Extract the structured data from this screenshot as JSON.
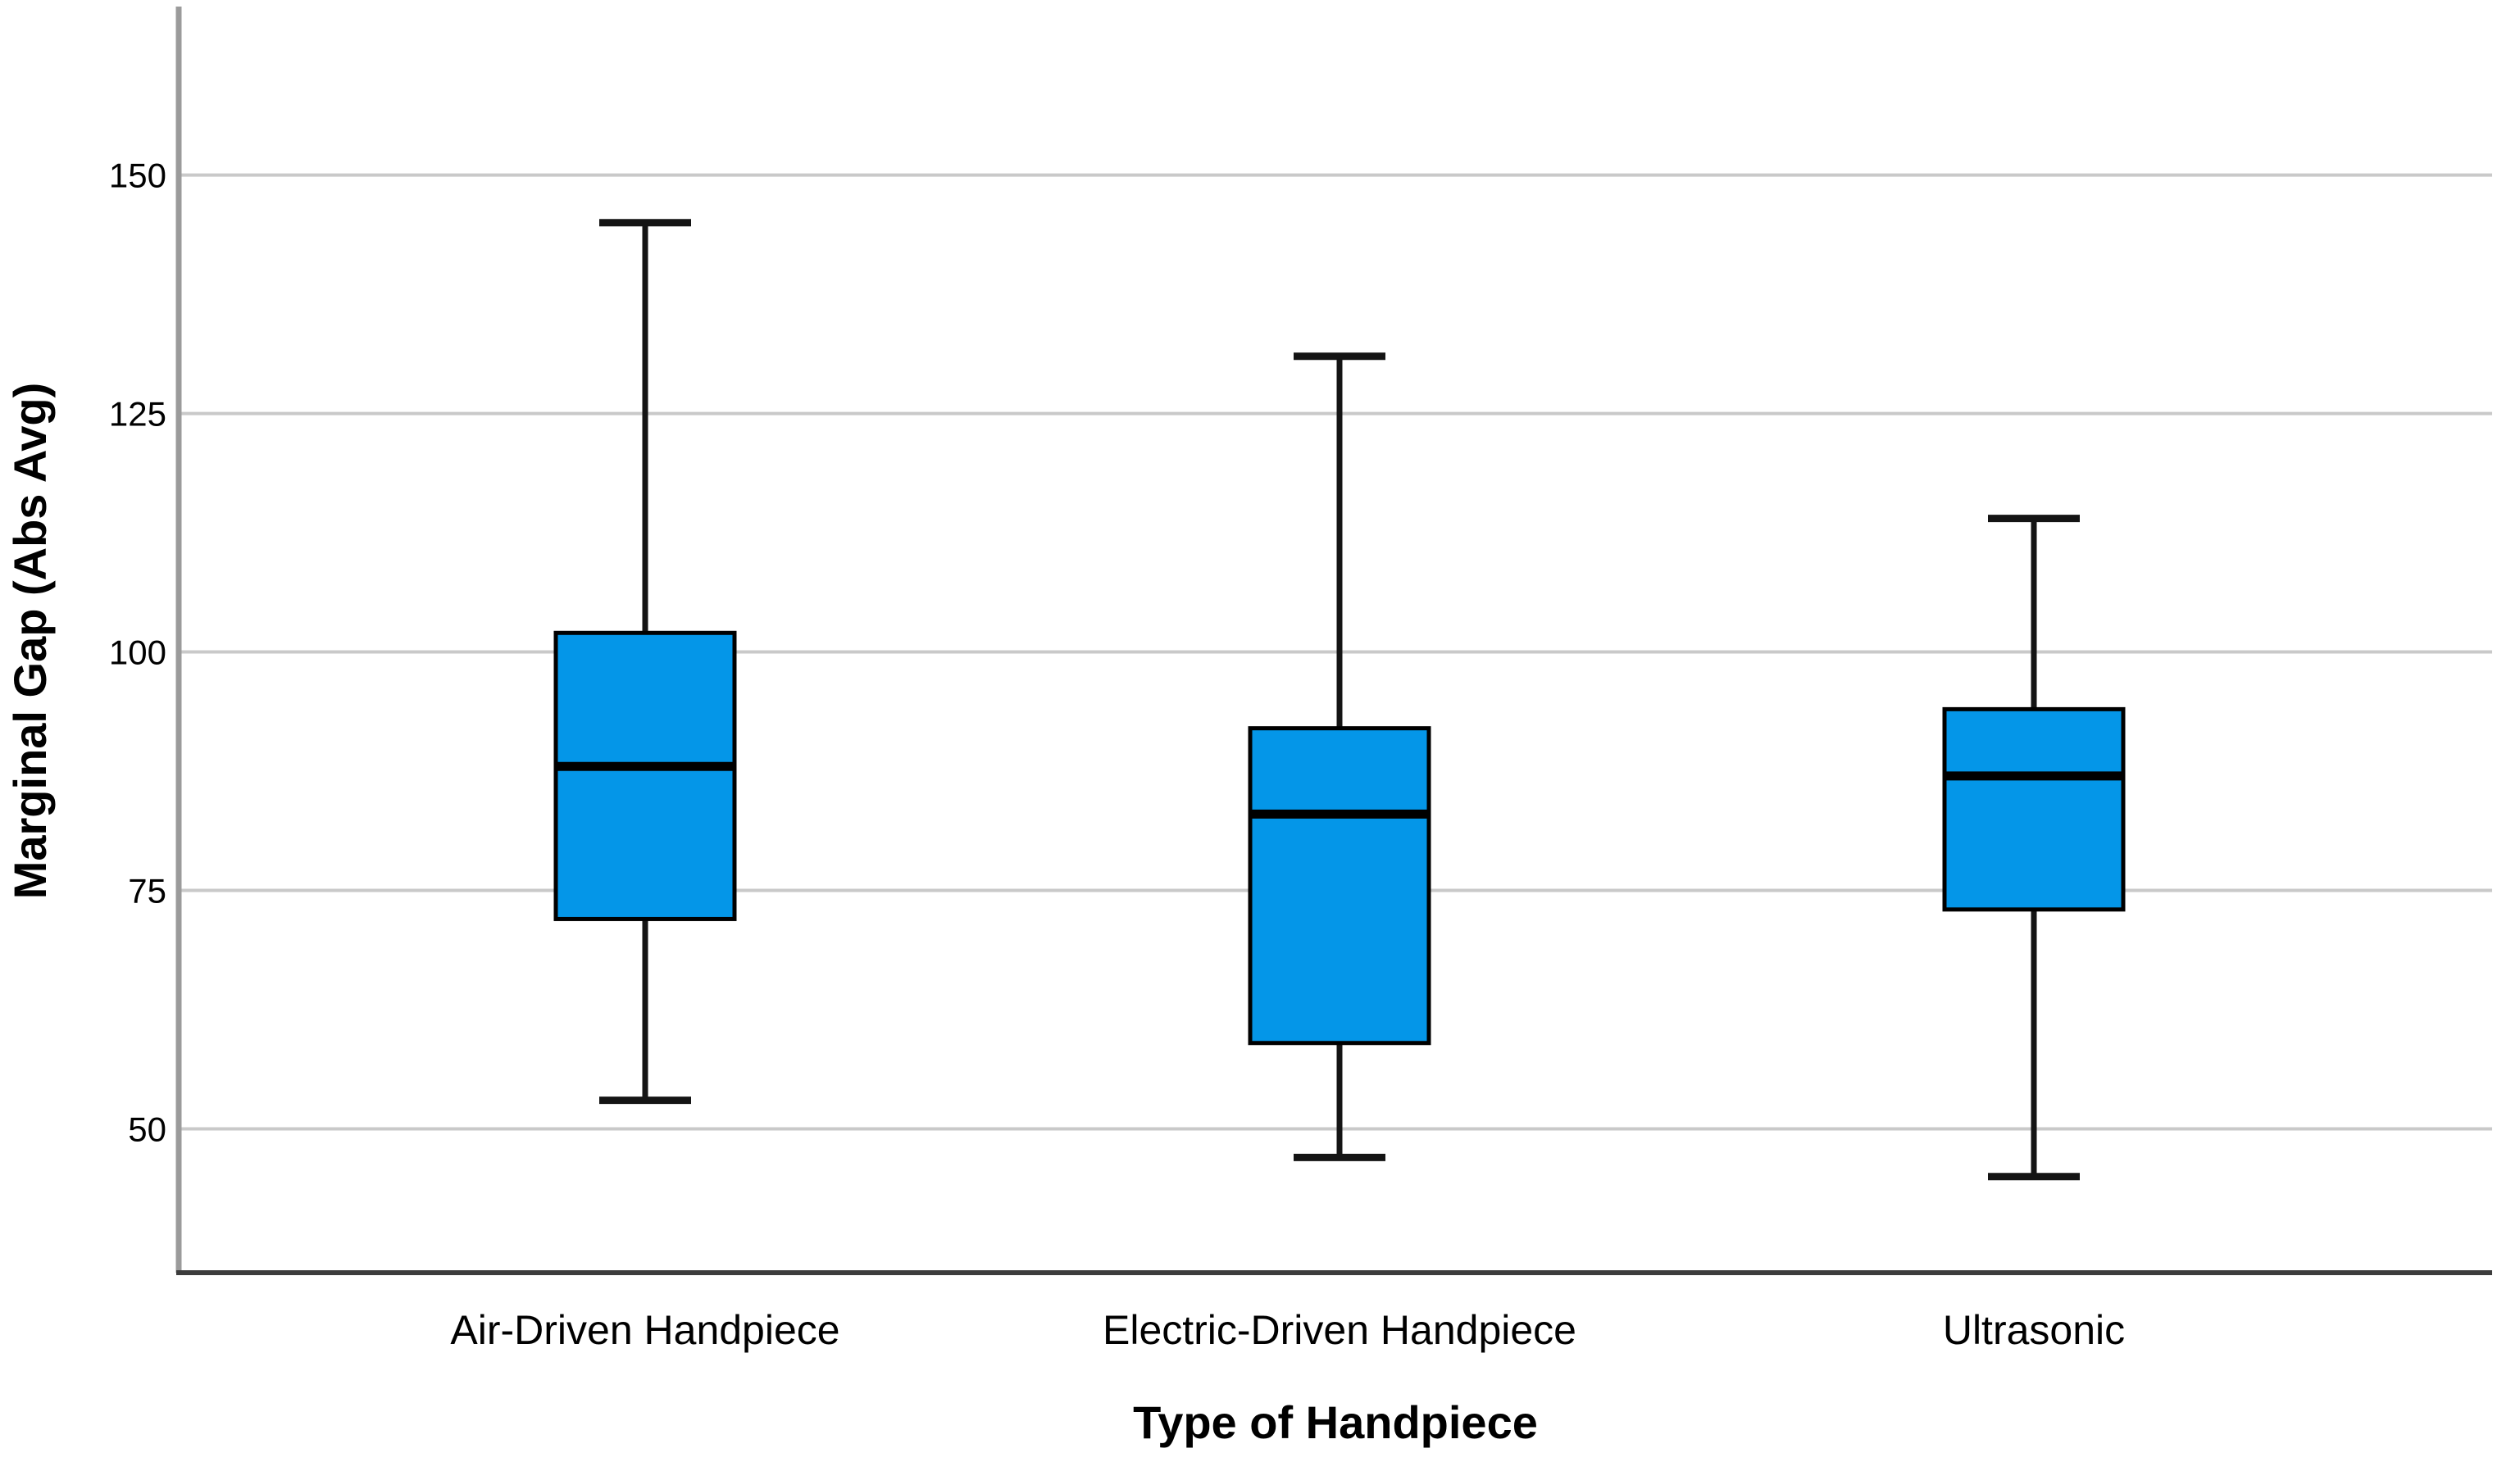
{
  "chart_data": {
    "type": "box",
    "title": "",
    "xlabel": "Type of Handpiece",
    "ylabel": "Marginal Gap (Abs Avg)",
    "categories": [
      "Air-Driven Handpiece",
      "Electric-Driven Handpiece",
      "Ultrasonic"
    ],
    "boxes": [
      {
        "category": "Air-Driven Handpiece",
        "whisker_low": 53,
        "q1": 72,
        "median": 88,
        "q3": 102,
        "whisker_high": 145
      },
      {
        "category": "Electric-Driven Handpiece",
        "whisker_low": 47,
        "q1": 59,
        "median": 83,
        "q3": 92,
        "whisker_high": 131
      },
      {
        "category": "Ultrasonic",
        "whisker_low": 45,
        "q1": 73,
        "median": 87,
        "q3": 94,
        "whisker_high": 114
      }
    ],
    "y_ticks": [
      150,
      125,
      100,
      75,
      50
    ],
    "ylim": [
      35,
      168
    ],
    "grid": "horizontal",
    "legend": "none",
    "colors": {
      "box_fill": "#0496E8",
      "box_border": "#000000",
      "median_line": "#000000",
      "whisker_line": "#141414",
      "gridline": "#c9c9c9",
      "left_spine": "#9b9b9b",
      "bottom_axis": "#3c3c3c",
      "background": "#ffffff",
      "text": "#000000"
    }
  }
}
